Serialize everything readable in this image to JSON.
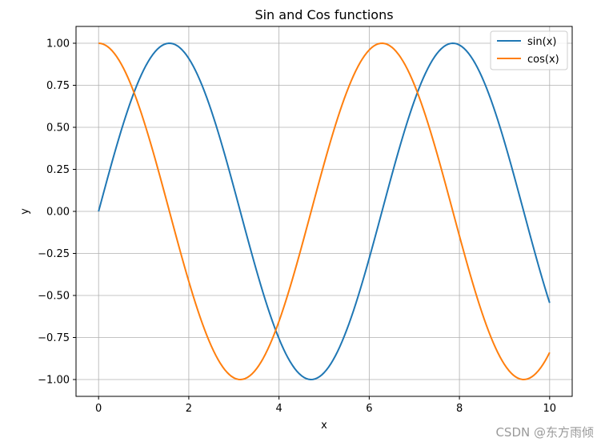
{
  "chart_data": {
    "type": "line",
    "title": "Sin and Cos functions",
    "xlabel": "x",
    "ylabel": "y",
    "xlim": [
      -0.5,
      10.5
    ],
    "ylim": [
      -1.1,
      1.1
    ],
    "xticks": [
      0,
      2,
      4,
      6,
      8,
      10
    ],
    "xtick_labels": [
      "0",
      "2",
      "4",
      "6",
      "8",
      "10"
    ],
    "yticks": [
      -1.0,
      -0.75,
      -0.5,
      -0.25,
      0.0,
      0.25,
      0.5,
      0.75,
      1.0
    ],
    "ytick_labels": [
      "−1.00",
      "−0.75",
      "−0.50",
      "−0.25",
      "0.00",
      "0.25",
      "0.50",
      "0.75",
      "1.00"
    ],
    "grid": true,
    "legend_position": "top-right",
    "series": [
      {
        "name": "sin(x)",
        "function": "sin",
        "color": "#1f77b4",
        "x": [
          0,
          0.5,
          1,
          1.5,
          2,
          2.5,
          3,
          3.5,
          4,
          4.5,
          5,
          5.5,
          6,
          6.5,
          7,
          7.5,
          8,
          8.5,
          9,
          9.5,
          10
        ],
        "values": [
          0.0,
          0.479,
          0.841,
          0.997,
          0.909,
          0.598,
          0.141,
          -0.351,
          -0.757,
          -0.978,
          -0.959,
          -0.706,
          -0.279,
          0.215,
          0.657,
          0.938,
          0.989,
          0.798,
          0.412,
          -0.075,
          -0.544
        ]
      },
      {
        "name": "cos(x)",
        "function": "cos",
        "color": "#ff7f0e",
        "x": [
          0,
          0.5,
          1,
          1.5,
          2,
          2.5,
          3,
          3.5,
          4,
          4.5,
          5,
          5.5,
          6,
          6.5,
          7,
          7.5,
          8,
          8.5,
          9,
          9.5,
          10
        ],
        "values": [
          1.0,
          0.878,
          0.54,
          0.071,
          -0.416,
          -0.801,
          -0.99,
          -0.936,
          -0.654,
          -0.211,
          0.284,
          0.709,
          0.96,
          0.977,
          0.754,
          0.347,
          -0.146,
          -0.602,
          -0.911,
          -0.997,
          -0.839
        ]
      }
    ]
  },
  "watermark": "CSDN @东方雨倾"
}
